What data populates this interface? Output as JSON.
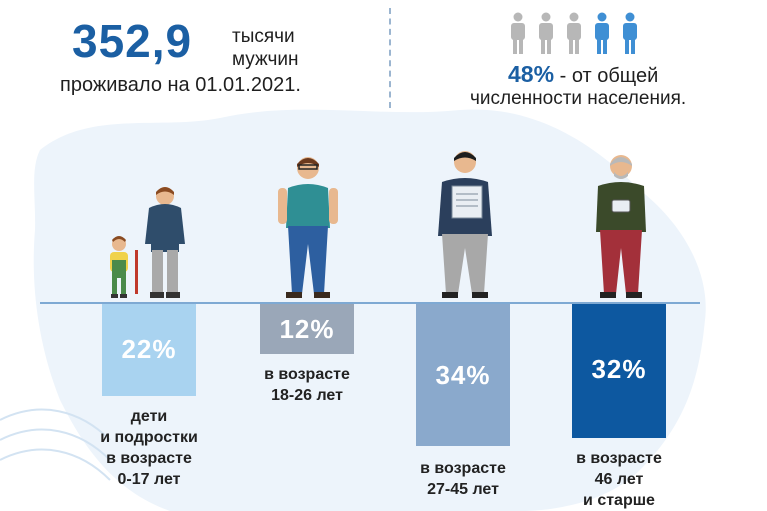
{
  "headline": {
    "number": "352,9",
    "unit_line1": "тысячи",
    "unit_line2": "мужчин",
    "date_text": "проживало на 01.01.2021."
  },
  "share": {
    "value": "48%",
    "text_line1": " - от общей",
    "text_line2": "численности населения."
  },
  "colors": {
    "dark_blue": "#1b5fa3",
    "light_blue": "#a9d3f0",
    "grey_blue": "#9aa7b8",
    "steel_blue": "#8aa9cc",
    "navy": "#0d58a0",
    "icon_grey": "#b7b7b7",
    "icon_blue": "#3f8fd4"
  },
  "groups": [
    {
      "percent_text": "22%",
      "share": 22,
      "label_lines": [
        "дети",
        "и подростки",
        "в возрасте",
        "0-17 лет"
      ]
    },
    {
      "percent_text": "12%",
      "share": 12,
      "label_lines": [
        "в возрасте",
        "18-26 лет"
      ]
    },
    {
      "percent_text": "34%",
      "share": 34,
      "label_lines": [
        "в возрасте",
        "27-45 лет"
      ]
    },
    {
      "percent_text": "32%",
      "share": 32,
      "label_lines": [
        "в возрасте",
        "46 лет",
        "и старше"
      ]
    }
  ],
  "icons": [
    "person-icon",
    "person-icon",
    "person-icon",
    "person-icon",
    "person-icon",
    "child-figure",
    "boy-figure",
    "young-man-figure",
    "man-with-newspaper-figure",
    "old-man-figure"
  ]
}
